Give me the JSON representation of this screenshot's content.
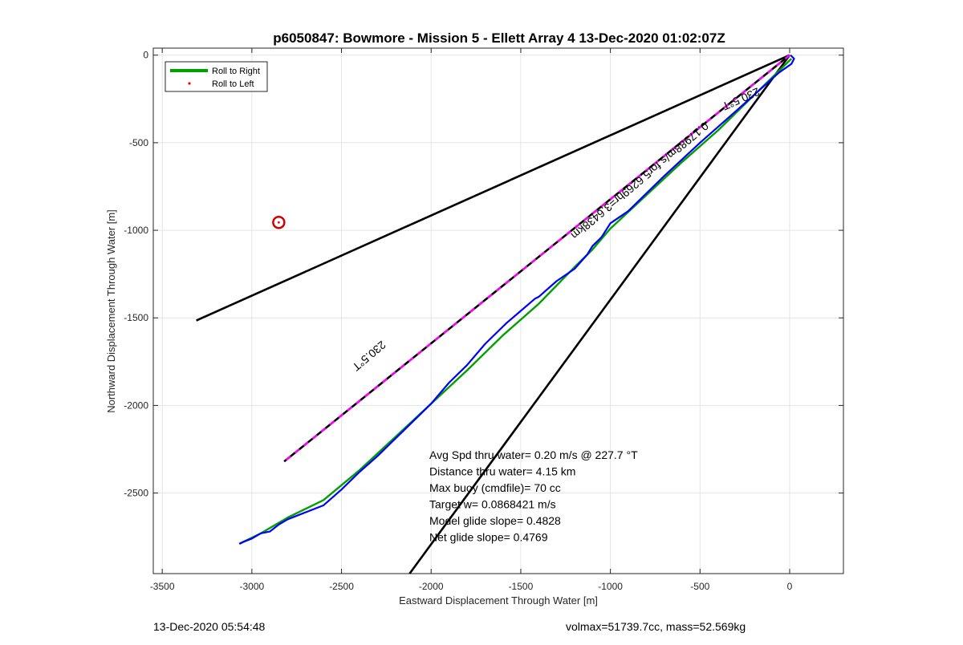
{
  "chart_data": {
    "type": "line",
    "title": "p6050847: Bowmore - Mission 5 - Ellett Array 4 13-Dec-2020 01:02:07Z",
    "xlabel": "Eastward Displacement Through Water [m]",
    "ylabel": "Northward Displacement Through Water [m]",
    "xlim": [
      -3550,
      300
    ],
    "ylim": [
      -2960,
      40
    ],
    "xticks": [
      -3500,
      -3000,
      -2500,
      -2000,
      -1500,
      -1000,
      -500,
      0
    ],
    "yticks": [
      0,
      -500,
      -1000,
      -1500,
      -2000,
      -2500
    ],
    "grid": true,
    "legend_position": "top-left",
    "legend": [
      {
        "name": "Roll to Right",
        "style": "line",
        "color": "#00a000"
      },
      {
        "name": "Roll to Left",
        "style": "point",
        "color": "#ff0000"
      }
    ],
    "series": [
      {
        "name": "Roll to Right",
        "color": "#00a000",
        "x": [
          10,
          -40,
          -200,
          -400,
          -600,
          -800,
          -1000,
          -1100,
          -1200,
          -1400,
          -1600,
          -1800,
          -2000,
          -2200,
          -2400,
          -2600,
          -2800,
          -2950,
          -3070
        ],
        "y": [
          -20,
          -70,
          -230,
          -430,
          -610,
          -800,
          -990,
          -1110,
          -1210,
          -1420,
          -1600,
          -1800,
          -1990,
          -2180,
          -2370,
          -2540,
          -2640,
          -2730,
          -2790
        ]
      },
      {
        "name": "Track",
        "color": "#0000ff",
        "x": [
          5,
          25,
          10,
          -60,
          -300,
          -500,
          -700,
          -900,
          -1000,
          -1050,
          -1100,
          -1130,
          -1200,
          -1300,
          -1400,
          -1420,
          -1500,
          -1580,
          -1600,
          -1700,
          -1800,
          -1900,
          -2000,
          -2100,
          -2200,
          -2300,
          -2400,
          -2500,
          -2600,
          -2700,
          -2800,
          -2850,
          -2900,
          -2950,
          -3000,
          -3050,
          -3070
        ],
        "y": [
          0,
          -20,
          -50,
          -100,
          -320,
          -500,
          -690,
          -890,
          -960,
          -1040,
          -1090,
          -1140,
          -1220,
          -1290,
          -1380,
          -1390,
          -1460,
          -1530,
          -1550,
          -1650,
          -1770,
          -1870,
          -1990,
          -2090,
          -2190,
          -2290,
          -2380,
          -2480,
          -2570,
          -2610,
          -2650,
          -2680,
          -2720,
          -2730,
          -2760,
          -2780,
          -2790
        ]
      },
      {
        "name": "Roll to Left",
        "color": "#ff0000",
        "x": [
          -2850
        ],
        "y": [
          -955
        ]
      }
    ],
    "reference_lines": [
      {
        "label": "",
        "x": [
          0,
          -3310
        ],
        "y": [
          0,
          -1515
        ],
        "color": "#000000"
      },
      {
        "label": "",
        "x": [
          0,
          -2120
        ],
        "y": [
          0,
          -2960
        ],
        "color": "#000000"
      },
      {
        "label": "0.17988m/s for5.6269hr=3.6438km",
        "x": [
          0,
          -2820
        ],
        "y": [
          0,
          -2320
        ],
        "color": "#000000",
        "dash_color": "#ff00ff"
      }
    ],
    "line_labels": [
      {
        "text": "230.5°T",
        "x": -280,
        "y": -230
      },
      {
        "text": "0.17988m/s for5.6269hr=3.6438km",
        "x": -850,
        "y": -700
      },
      {
        "text": "230.5°T",
        "x": -2360,
        "y": -1700
      }
    ],
    "annotations": [
      "Avg Spd thru water=  0.20 m/s @ 227.7 °T",
      "Distance thru water=  4.15 km",
      "Max buoy (cmdfile)= 70 cc",
      "Target w= 0.0868421 m/s",
      "Model glide slope= 0.4828",
      "Net glide slope= 0.4769"
    ]
  },
  "footer": {
    "left": "13-Dec-2020 05:54:48",
    "right": "volmax=51739.7cc, mass=52.569kg"
  }
}
